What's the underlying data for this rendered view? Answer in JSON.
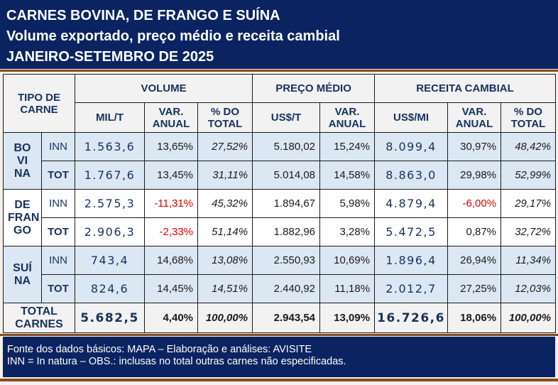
{
  "title": {
    "line1": "CARNES BOVINA, DE FRANGO E SUÍNA",
    "line2": "Volume exportado, preço médio e receita cambial",
    "line3": "JANEIRO-SETEMBRO DE 2025"
  },
  "headers": {
    "tipo": "TIPO DE CARNE",
    "volume": "VOLUME",
    "preco": "PREÇO MÉDIO",
    "receita": "RECEITA CAMBIAL",
    "mil_t": "MIL/T",
    "var_anual": "VAR. ANUAL",
    "pct_total": "% DO TOTAL",
    "us_t": "US$/T",
    "us_mi": "US$/MI"
  },
  "groups": [
    {
      "label": "BO VI NA",
      "rows": [
        {
          "sub": "INN",
          "vol": "1.563,6",
          "vol_var": "13,65%",
          "vol_pct": "27,52%",
          "preco": "5.180,02",
          "preco_var": "15,24%",
          "rec": "8.099,4",
          "rec_var": "30,97%",
          "rec_pct": "48,42%"
        },
        {
          "sub": "TOT",
          "vol": "1.767,6",
          "vol_var": "13,45%",
          "vol_pct": "31,11%",
          "preco": "5.014,08",
          "preco_var": "14,58%",
          "rec": "8.863,0",
          "rec_var": "29,98%",
          "rec_pct": "52,99%"
        }
      ]
    },
    {
      "label": "DE FRAN GO",
      "rows": [
        {
          "sub": "INN",
          "vol": "2.575,3",
          "vol_var": "-11,31%",
          "vol_pct": "45,32%",
          "preco": "1.894,67",
          "preco_var": "5,98%",
          "rec": "4.879,4",
          "rec_var": "-6,00%",
          "rec_pct": "29,17%"
        },
        {
          "sub": "TOT",
          "vol": "2.906,3",
          "vol_var": "-2,33%",
          "vol_pct": "51,14%",
          "preco": "1.882,96",
          "preco_var": "3,28%",
          "rec": "5.472,5",
          "rec_var": "0,87%",
          "rec_pct": "32,72%"
        }
      ]
    },
    {
      "label": "SUÍ NA",
      "rows": [
        {
          "sub": "INN",
          "vol": "743,4",
          "vol_var": "14,68%",
          "vol_pct": "13,08%",
          "preco": "2.550,93",
          "preco_var": "10,69%",
          "rec": "1.896,4",
          "rec_var": "26,94%",
          "rec_pct": "11,34%"
        },
        {
          "sub": "TOT",
          "vol": "824,6",
          "vol_var": "14,45%",
          "vol_pct": "14,51%",
          "preco": "2.440,92",
          "preco_var": "11,18%",
          "rec": "2.012,7",
          "rec_var": "27,25%",
          "rec_pct": "12,03%"
        }
      ]
    }
  ],
  "total": {
    "label": "TOTAL CARNES",
    "vol": "5.682,5",
    "vol_var": "4,40%",
    "vol_pct": "100,00%",
    "preco": "2.943,54",
    "preco_var": "13,09%",
    "rec": "16.726,6",
    "rec_var": "18,06%",
    "rec_pct": "100,00%"
  },
  "footer": {
    "line1": "Fonte dos dados básicos: MAPA – Elaboração e análises: AVISITE",
    "line2": "INN = In natura – OBS.: inclusas no total outras carnes não especificadas."
  },
  "colors": {
    "navy": "#0b2461",
    "brown": "#8a4a1e",
    "negative": "#e00000",
    "row_blue": "#dce7f4"
  }
}
